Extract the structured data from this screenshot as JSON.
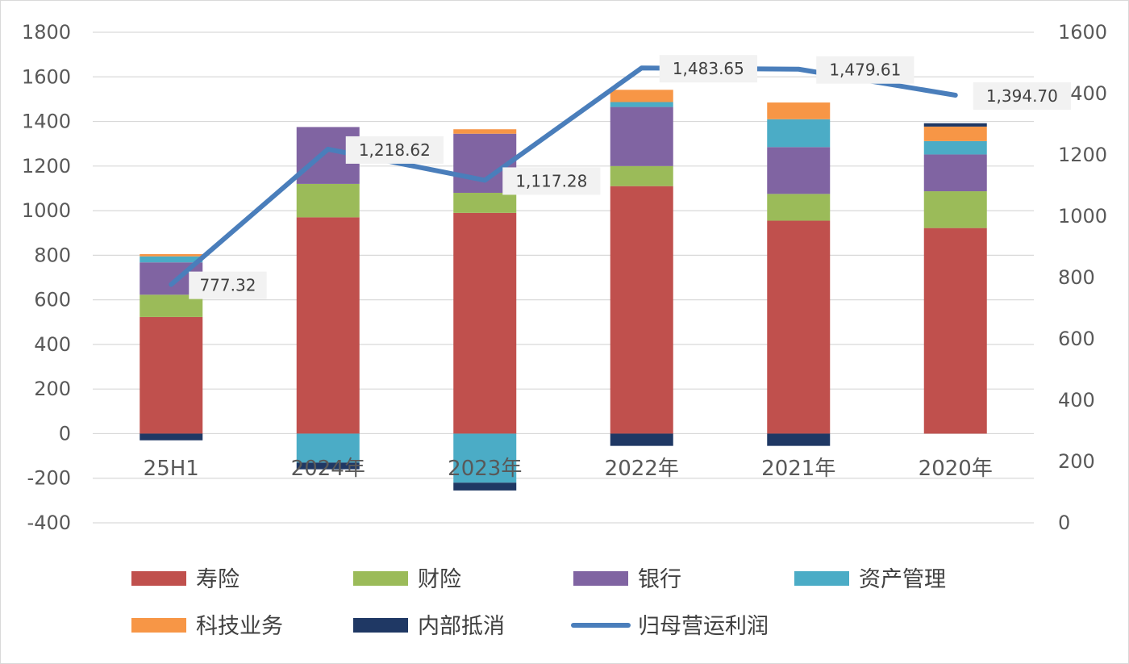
{
  "chart_data": {
    "type": "bar",
    "stacked": true,
    "categories": [
      "25H1",
      "2024年",
      "2023年",
      "2022年",
      "2021年",
      "2020年"
    ],
    "ylim": [
      -400,
      1800
    ],
    "yticks": [
      -400,
      -200,
      0,
      200,
      400,
      600,
      800,
      1000,
      1200,
      1400,
      1600,
      1800
    ],
    "y2lim": [
      0,
      1600
    ],
    "y2ticks": [
      0,
      200,
      400,
      600,
      800,
      1000,
      1200,
      1400,
      1600
    ],
    "grid": true,
    "legend_position": "bottom",
    "series": [
      {
        "name": "寿险",
        "color": "#C0504D",
        "values": [
          523,
          970,
          990,
          1110,
          955,
          922
        ]
      },
      {
        "name": "财险",
        "color": "#9BBB59",
        "values": [
          100,
          150,
          90,
          90,
          120,
          165
        ]
      },
      {
        "name": "银行",
        "color": "#8064A2",
        "values": [
          145,
          255,
          265,
          265,
          210,
          165
        ]
      },
      {
        "name": "资产管理",
        "color": "#4BACC6",
        "values": [
          27,
          -130,
          -220,
          22,
          125,
          60
        ]
      },
      {
        "name": "科技业务",
        "color": "#F79646",
        "values": [
          10,
          0,
          20,
          55,
          75,
          65
        ]
      },
      {
        "name": "内部抵消",
        "color": "#1F3864",
        "values": [
          -30,
          -30,
          -35,
          -55,
          -55,
          15
        ]
      }
    ],
    "line": {
      "name": "归母营运利润",
      "axis": "right",
      "color": "#4A7EBB",
      "values": [
        777.32,
        1218.62,
        1117.28,
        1483.65,
        1479.61,
        1394.7
      ],
      "labels": [
        "777.32",
        "1,218.62",
        "1,117.28",
        "1,483.65",
        "1,479.61",
        "1,394.70"
      ]
    }
  }
}
